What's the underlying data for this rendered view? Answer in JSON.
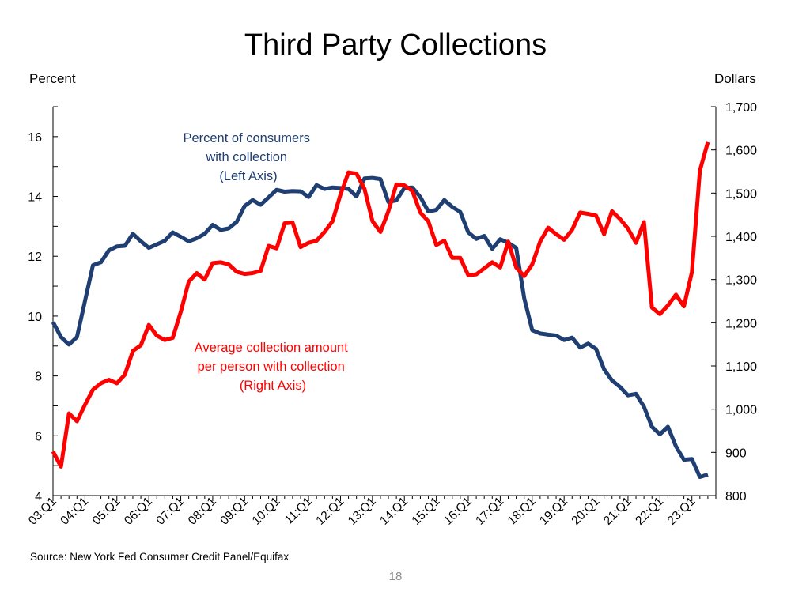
{
  "chart_data": {
    "type": "line",
    "title": "Third Party Collections",
    "ylabel": "Percent",
    "y2label": "Dollars",
    "ylim": [
      4,
      17
    ],
    "y2lim": [
      800,
      1700
    ],
    "yticks": [
      4,
      6,
      8,
      10,
      12,
      14,
      16
    ],
    "y2ticks": [
      800,
      900,
      1000,
      1100,
      1200,
      1300,
      1400,
      1500,
      1600,
      1700
    ],
    "y2tick_labels": [
      "800",
      "900",
      "1,000",
      "1,100",
      "1,200",
      "1,300",
      "1,400",
      "1,500",
      "1,600",
      "1,700"
    ],
    "x_labels": [
      "03:Q1",
      "04:Q1",
      "05:Q1",
      "06:Q1",
      "07:Q1",
      "08:Q1",
      "09:Q1",
      "10:Q1",
      "11:Q1",
      "12:Q1",
      "13:Q1",
      "14:Q1",
      "15:Q1",
      "16:Q1",
      "17:Q1",
      "18:Q1",
      "19:Q1",
      "20:Q1",
      "21:Q1",
      "22:Q1",
      "23:Q1"
    ],
    "series": [
      {
        "name": "Percent of consumers with collection",
        "axis": "left",
        "color": "#1f3e72",
        "values": [
          9.8,
          9.3,
          9.05,
          9.3,
          10.5,
          11.7,
          11.8,
          12.2,
          12.33,
          12.35,
          12.75,
          12.5,
          12.28,
          12.4,
          12.52,
          12.8,
          12.65,
          12.5,
          12.6,
          12.75,
          13.05,
          12.88,
          12.93,
          13.15,
          13.68,
          13.88,
          13.72,
          13.97,
          14.22,
          14.16,
          14.18,
          14.17,
          13.98,
          14.38,
          14.25,
          14.3,
          14.28,
          14.25,
          14.0,
          14.6,
          14.62,
          14.58,
          13.82,
          13.87,
          14.28,
          14.3,
          13.98,
          13.5,
          13.55,
          13.88,
          13.65,
          13.48,
          12.8,
          12.58,
          12.68,
          12.25,
          12.57,
          12.45,
          12.28,
          10.6,
          9.53,
          9.42,
          9.38,
          9.35,
          9.2,
          9.28,
          8.95,
          9.08,
          8.9,
          8.22,
          7.85,
          7.63,
          7.35,
          7.4,
          6.97,
          6.3,
          6.05,
          6.3,
          5.65,
          5.2,
          5.22,
          4.62,
          4.7
        ]
      },
      {
        "name": "Average collection amount per person with collection",
        "axis": "right",
        "color": "#ff0000",
        "values": [
          902,
          867,
          990,
          972,
          1010,
          1045,
          1060,
          1068,
          1060,
          1080,
          1135,
          1148,
          1195,
          1170,
          1160,
          1165,
          1225,
          1295,
          1315,
          1300,
          1338,
          1340,
          1335,
          1318,
          1313,
          1315,
          1320,
          1378,
          1372,
          1430,
          1432,
          1375,
          1385,
          1390,
          1410,
          1435,
          1497,
          1548,
          1545,
          1510,
          1435,
          1410,
          1458,
          1520,
          1518,
          1505,
          1455,
          1435,
          1380,
          1390,
          1350,
          1350,
          1310,
          1312,
          1326,
          1340,
          1328,
          1388,
          1328,
          1308,
          1335,
          1388,
          1420,
          1405,
          1392,
          1415,
          1455,
          1452,
          1448,
          1405,
          1458,
          1440,
          1418,
          1385,
          1433,
          1235,
          1220,
          1240,
          1265,
          1238,
          1317,
          1552,
          1618
        ]
      }
    ]
  },
  "annotations": {
    "left_series": [
      "Percent of consumers",
      "with collection",
      "(Left Axis)"
    ],
    "right_series": [
      "Average collection amount",
      "per person with collection",
      "(Right Axis)"
    ]
  },
  "footer": {
    "source": "Source: New York Fed Consumer Credit Panel/Equifax",
    "page_number": "18"
  },
  "colors": {
    "left_series": "#1f3e72",
    "right_series": "#ff0000"
  }
}
